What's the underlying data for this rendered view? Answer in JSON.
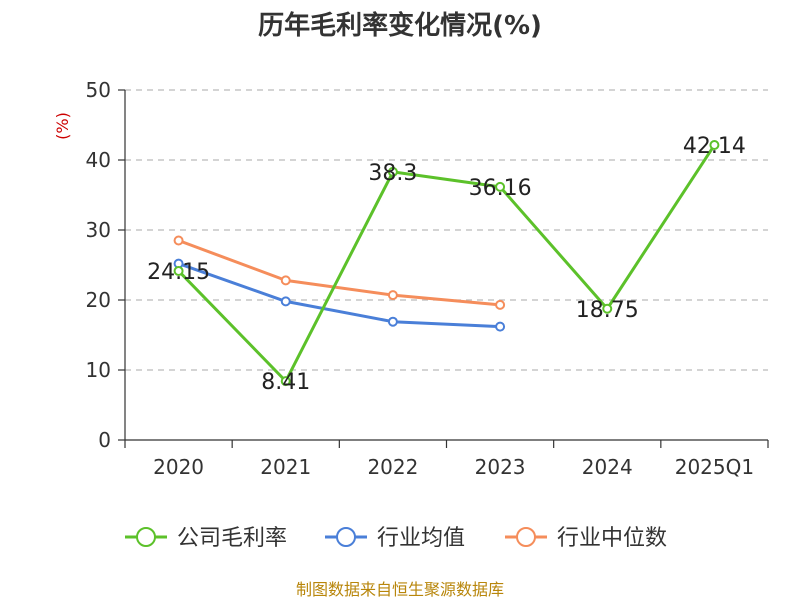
{
  "chart_data": {
    "type": "line",
    "title": "历年毛利率变化情况(%)",
    "ylabel": "(%)",
    "xlabel": "",
    "categories": [
      "2020",
      "2021",
      "2022",
      "2023",
      "2024",
      "2025Q1"
    ],
    "ylim": [
      0,
      50
    ],
    "yticks": [
      0,
      10,
      20,
      30,
      40,
      50
    ],
    "grid": true,
    "legend_position": "bottom",
    "series": [
      {
        "name": "公司毛利率",
        "color": "#5cc12a",
        "values": [
          24.15,
          8.41,
          38.3,
          36.16,
          18.75,
          42.14
        ],
        "labels": [
          "24.15",
          "8.41",
          "38.3",
          "36.16",
          "18.75",
          "42.14"
        ]
      },
      {
        "name": "行业均值",
        "color": "#4a7fd8",
        "values": [
          25.2,
          19.8,
          16.9,
          16.2,
          null,
          null
        ]
      },
      {
        "name": "行业中位数",
        "color": "#f58d5b",
        "values": [
          28.5,
          22.8,
          20.7,
          19.3,
          null,
          null
        ]
      }
    ]
  },
  "source": "制图数据来自恒生聚源数据库"
}
